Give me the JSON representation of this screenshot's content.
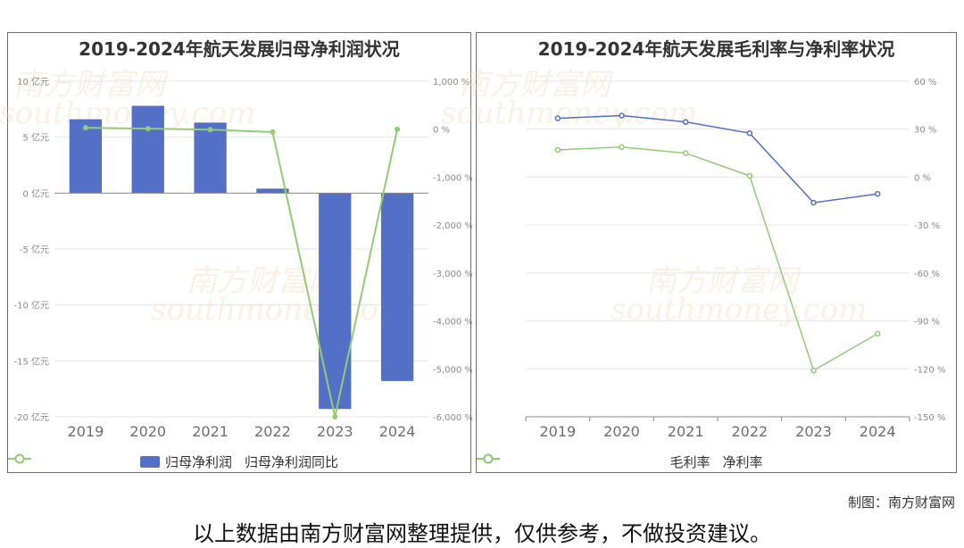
{
  "chart_data": [
    {
      "type": "bar",
      "title": "2019-2024年航天发展归母净利润状况",
      "categories": [
        "2019",
        "2020",
        "2021",
        "2022",
        "2023",
        "2024"
      ],
      "series": [
        {
          "name": "归母净利润",
          "type": "bar",
          "axis": "left",
          "values": [
            6.6,
            7.8,
            6.3,
            0.4,
            -19.3,
            -16.8
          ]
        },
        {
          "name": "归母净利润同比",
          "type": "line",
          "axis": "right",
          "values": [
            30,
            10,
            -10,
            -60,
            -6000,
            0
          ]
        }
      ],
      "y_left": {
        "ticks": [
          10,
          5,
          0,
          -5,
          -10,
          -15,
          -20
        ],
        "unit": "亿元",
        "range": [
          -20,
          10
        ]
      },
      "y_right": {
        "ticks": [
          1000,
          0,
          -1000,
          -2000,
          -3000,
          -4000,
          -5000,
          -6000
        ],
        "unit": "%",
        "range": [
          -6000,
          1000
        ]
      },
      "tick_labels_left": [
        "10 亿元",
        "5 亿元",
        "0 亿元",
        "-5 亿元",
        "-10 亿元",
        "-15 亿元",
        "-20 亿元"
      ],
      "tick_labels_right": [
        "1,000 %",
        "0 %",
        "-1,000 %",
        "-2,000 %",
        "-3,000 %",
        "-4,000 %",
        "-5,000 %",
        "-6,000 %"
      ],
      "colors": {
        "bar": "#5470c6",
        "line": "#91cc75"
      },
      "legend_position": "bottom",
      "grid": true
    },
    {
      "type": "line",
      "title": "2019-2024年航天发展毛利率与净利率状况",
      "categories": [
        "2019",
        "2020",
        "2021",
        "2022",
        "2023",
        "2024"
      ],
      "series": [
        {
          "name": "毛利率",
          "values": [
            36.8,
            38.5,
            34.5,
            27.5,
            -16,
            -10.5
          ]
        },
        {
          "name": "净利率",
          "values": [
            17,
            18.8,
            15,
            0.8,
            -121,
            -98
          ]
        }
      ],
      "y_right": {
        "ticks": [
          60,
          30,
          0,
          -30,
          -60,
          -90,
          -120,
          -150
        ],
        "unit": "%",
        "range": [
          -150,
          60
        ]
      },
      "tick_labels_right": [
        "60 %",
        "30 %",
        "0 %",
        "-30 %",
        "-60 %",
        "-90 %",
        "-120 %",
        "-150 %"
      ],
      "colors": {
        "gross": "#5470c6",
        "net": "#91cc75"
      },
      "legend_position": "bottom",
      "grid": true
    }
  ],
  "watermark": {
    "cn": "南方财富网",
    "en": "southmoney.com"
  },
  "credit": "制图：南方财富网",
  "footer": "以上数据由南方财富网整理提供，仅供参考，不做投资建议。"
}
